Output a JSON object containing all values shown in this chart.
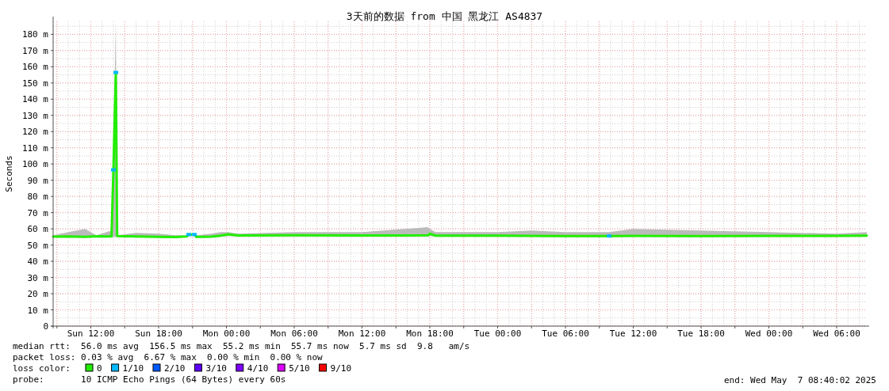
{
  "chart_data": {
    "type": "line",
    "title": "3天前的数据 from 中国 黑龙江 AS4837",
    "ylabel": "Seconds",
    "xlim": [
      "2025-05-04T08:40",
      "2025-05-07T08:40"
    ],
    "xticks": [
      {
        "value": "2025-05-04T09:00",
        "label": null
      },
      {
        "value": "2025-05-04T12:00",
        "label": "Sun 12:00"
      },
      {
        "value": "2025-05-04T15:00",
        "label": null
      },
      {
        "value": "2025-05-04T18:00",
        "label": "Sun 18:00"
      },
      {
        "value": "2025-05-04T21:00",
        "label": null
      },
      {
        "value": "2025-05-05T00:00",
        "label": "Mon 00:00"
      },
      {
        "value": "2025-05-05T03:00",
        "label": null
      },
      {
        "value": "2025-05-05T06:00",
        "label": "Mon 06:00"
      },
      {
        "value": "2025-05-05T09:00",
        "label": null
      },
      {
        "value": "2025-05-05T12:00",
        "label": "Mon 12:00"
      },
      {
        "value": "2025-05-05T15:00",
        "label": null
      },
      {
        "value": "2025-05-05T18:00",
        "label": "Mon 18:00"
      },
      {
        "value": "2025-05-05T21:00",
        "label": null
      },
      {
        "value": "2025-05-06T00:00",
        "label": "Tue 00:00"
      },
      {
        "value": "2025-05-06T03:00",
        "label": null
      },
      {
        "value": "2025-05-06T06:00",
        "label": "Tue 06:00"
      },
      {
        "value": "2025-05-06T09:00",
        "label": null
      },
      {
        "value": "2025-05-06T12:00",
        "label": "Tue 12:00"
      },
      {
        "value": "2025-05-06T15:00",
        "label": null
      },
      {
        "value": "2025-05-06T18:00",
        "label": "Tue 18:00"
      },
      {
        "value": "2025-05-06T21:00",
        "label": null
      },
      {
        "value": "2025-05-07T00:00",
        "label": "Wed 00:00"
      },
      {
        "value": "2025-05-07T03:00",
        "label": null
      },
      {
        "value": "2025-05-07T06:00",
        "label": "Wed 06:00"
      }
    ],
    "ylim": [
      0,
      188
    ],
    "yticks": [
      0,
      {
        "value": 10,
        "label": "10 m"
      },
      {
        "value": 20,
        "label": "20 m"
      },
      {
        "value": 30,
        "label": "30 m"
      },
      {
        "value": 40,
        "label": "40 m"
      },
      {
        "value": 50,
        "label": "50 m"
      },
      {
        "value": 60,
        "label": "60 m"
      },
      {
        "value": 70,
        "label": "70 m"
      },
      {
        "value": 80,
        "label": "80 m"
      },
      {
        "value": 90,
        "label": "90 m"
      },
      {
        "value": 100,
        "label": "100 m"
      },
      {
        "value": 110,
        "label": "110 m"
      },
      {
        "value": 120,
        "label": "120 m"
      },
      {
        "value": 130,
        "label": "130 m"
      },
      {
        "value": 140,
        "label": "140 m"
      },
      {
        "value": 150,
        "label": "150 m"
      },
      {
        "value": 160,
        "label": "160 m"
      },
      {
        "value": 170,
        "label": "170 m"
      },
      {
        "value": 180,
        "label": "180 m"
      }
    ],
    "grid": true,
    "legend": "bottom",
    "legend_title": "loss color:",
    "line_style": "solid",
    "series": [
      {
        "name": "0",
        "color": "#22ee00",
        "x": [
          "2025-05-04T08:40",
          "2025-05-04T10:00",
          "2025-05-04T11:30",
          "2025-05-04T12:30",
          "2025-05-04T13:50",
          "2025-05-04T14:00",
          "2025-05-04T14:13",
          "2025-05-04T14:20",
          "2025-05-04T16:00",
          "2025-05-04T18:00",
          "2025-05-04T19:30",
          "2025-05-04T20:30",
          "2025-05-04T20:40",
          "2025-05-04T21:10",
          "2025-05-04T21:20",
          "2025-05-04T22:40",
          "2025-05-04T23:30",
          "2025-05-05T00:10",
          "2025-05-05T01:00",
          "2025-05-05T06:00",
          "2025-05-05T12:00",
          "2025-05-05T17:50",
          "2025-05-05T18:00",
          "2025-05-05T18:30",
          "2025-05-06T00:00",
          "2025-05-06T03:00",
          "2025-05-06T06:00",
          "2025-05-06T09:52",
          "2025-05-06T12:00",
          "2025-05-06T18:00",
          "2025-05-07T00:00",
          "2025-05-07T06:00",
          "2025-05-07T08:40"
        ],
        "values": [
          55.2,
          55.3,
          55.0,
          55.4,
          55.3,
          96.4,
          156.5,
          55.6,
          55.3,
          55.0,
          54.9,
          55.3,
          56.5,
          56.5,
          55.0,
          55.2,
          55.8,
          56.6,
          55.9,
          56.0,
          55.9,
          56.0,
          57.0,
          55.8,
          55.8,
          55.7,
          55.6,
          55.6,
          55.7,
          55.6,
          55.7,
          55.7,
          55.8
        ],
        "lower": [
          54.8,
          54.8,
          54.6,
          54.8,
          54.8,
          55.0,
          55.0,
          55.0,
          54.8,
          54.6,
          54.5,
          54.8,
          55.5,
          55.5,
          54.6,
          54.8,
          55.2,
          55.6,
          55.4,
          55.4,
          55.4,
          55.4,
          55.6,
          55.4,
          55.3,
          55.2,
          55.1,
          55.1,
          55.2,
          55.1,
          55.2,
          55.2,
          55.3
        ],
        "upper": [
          56,
          58,
          60,
          56,
          59,
          114.5,
          188,
          56,
          57.5,
          57,
          56,
          56,
          57,
          57,
          56,
          57,
          58,
          58,
          57,
          58,
          58,
          61,
          60,
          58,
          58,
          59,
          58,
          58,
          60,
          59,
          58,
          57,
          58
        ]
      },
      {
        "name": "1/10",
        "type": "scatter",
        "marker": "square",
        "color": "#00b8ff",
        "x": [
          "2025-05-04T14:00",
          "2025-05-04T14:13",
          "2025-05-04T20:40",
          "2025-05-04T21:10",
          "2025-05-06T09:52"
        ],
        "values": [
          96.4,
          156.5,
          56.5,
          56.5,
          55.6
        ]
      },
      {
        "name": "2/10",
        "type": "scatter",
        "color": "#0059ff"
      },
      {
        "name": "3/10",
        "type": "scatter",
        "color": "#5e00ff"
      },
      {
        "name": "4/10",
        "type": "scatter",
        "color": "#7e00ff"
      },
      {
        "name": "5/10",
        "type": "scatter",
        "color": "#dd00ff"
      },
      {
        "name": "9/10",
        "type": "scatter",
        "color": "#ff0000"
      }
    ],
    "annotations": [
      "median rtt:  56.0 ms avg  156.5 ms max  55.2 ms min  55.7 ms now  5.7 ms sd  9.8   am/s",
      "packet loss: 0.03 % avg  6.67 % max  0.00 % min  0.00 % now",
      "probe:       10 ICMP Echo Pings (64 Bytes) every 60s",
      "end: Wed May  7 08:40:02 2025"
    ]
  }
}
